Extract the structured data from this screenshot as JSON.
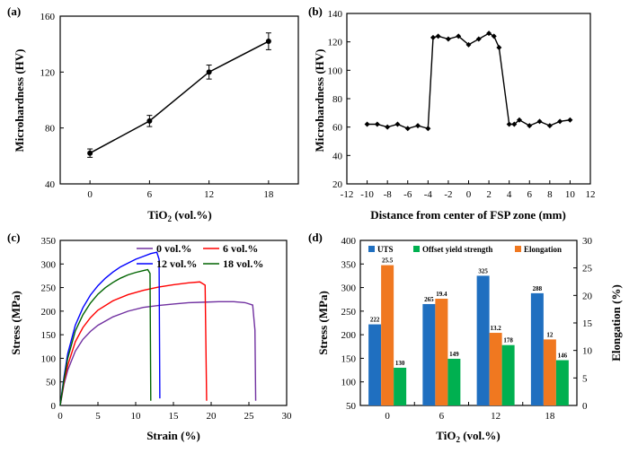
{
  "colors": {
    "black": "#000000",
    "purple": "#7030a0",
    "red": "#ff0000",
    "blue": "#0000ff",
    "green": "#006400",
    "uts": "#1f6fc0",
    "yield": "#00b050",
    "elongation": "#f07820"
  },
  "chart_data": [
    {
      "panel": "(a)",
      "type": "line",
      "xlabel_main": "TiO",
      "xlabel_sub": "2",
      "xlabel_rest": " (vol.%)",
      "ylabel": "Microhardness (HV)",
      "categories": [
        "0",
        "6",
        "12",
        "18"
      ],
      "x": [
        0,
        6,
        12,
        18
      ],
      "values": [
        62,
        85,
        120,
        142
      ],
      "errors": [
        3,
        4,
        5,
        6
      ],
      "ylim": [
        40,
        160
      ],
      "yticks": [
        "40",
        "80",
        "120",
        "160"
      ]
    },
    {
      "panel": "(b)",
      "type": "line",
      "xlabel": "Distance from center of FSP zone (mm)",
      "ylabel": "Microhardness (HV)",
      "x": [
        -10,
        -9,
        -8,
        -7,
        -6,
        -5,
        -4,
        -3.5,
        -3,
        -2,
        -1,
        0,
        1,
        2,
        2.5,
        3,
        4,
        4.5,
        5,
        6,
        7,
        8,
        9,
        10
      ],
      "values": [
        62,
        62,
        60,
        62,
        59,
        61,
        59,
        123,
        124,
        122,
        124,
        118,
        122,
        126,
        124,
        116,
        62,
        62,
        65,
        61,
        64,
        61,
        64,
        65
      ],
      "xlim": [
        -12,
        12
      ],
      "ylim": [
        20,
        140
      ],
      "xticks": [
        "-12",
        "-10",
        "-8",
        "-6",
        "-4",
        "-2",
        "0",
        "2",
        "4",
        "6",
        "8",
        "10",
        "12"
      ],
      "yticks": [
        "20",
        "40",
        "60",
        "80",
        "100",
        "120",
        "140"
      ]
    },
    {
      "panel": "(c)",
      "type": "line",
      "xlabel": "Strain (%)",
      "ylabel": "Stress (MPa)",
      "xlim": [
        0,
        30
      ],
      "ylim": [
        0,
        350
      ],
      "xticks": [
        "0",
        "5",
        "10",
        "15",
        "20",
        "25",
        "30"
      ],
      "yticks": [
        "0",
        "50",
        "100",
        "150",
        "200",
        "250",
        "300",
        "350"
      ],
      "series": [
        {
          "name": "0 vol.%",
          "color_key": "purple",
          "x": [
            0,
            0.5,
            1,
            2,
            3,
            4,
            5,
            7,
            9,
            11,
            13,
            15,
            17,
            19,
            21,
            23,
            24.5,
            25.5,
            25.8,
            25.9
          ],
          "values": [
            0,
            45,
            75,
            115,
            140,
            157,
            170,
            188,
            200,
            208,
            212,
            215,
            218,
            219,
            220,
            220,
            218,
            213,
            160,
            10
          ]
        },
        {
          "name": "6 vol.%",
          "color_key": "red",
          "x": [
            0,
            0.5,
            1,
            2,
            3,
            4,
            5,
            7,
            9,
            11,
            13,
            15,
            17,
            18.5,
            19.2,
            19.4
          ],
          "values": [
            0,
            50,
            85,
            135,
            165,
            186,
            202,
            222,
            235,
            244,
            251,
            256,
            260,
            262,
            255,
            10
          ]
        },
        {
          "name": "12 vol.%",
          "color_key": "blue",
          "x": [
            0,
            0.5,
            1,
            2,
            3,
            4,
            5,
            6,
            7,
            8,
            9,
            10,
            11,
            12,
            12.8,
            13.1,
            13.2
          ],
          "values": [
            0,
            60,
            110,
            170,
            207,
            234,
            254,
            270,
            283,
            294,
            302,
            310,
            316,
            322,
            325,
            310,
            15
          ]
        },
        {
          "name": "18 vol.%",
          "color_key": "green",
          "x": [
            0,
            0.5,
            1,
            2,
            3,
            4,
            5,
            6,
            7,
            8,
            9,
            10,
            11,
            11.6,
            11.9,
            12
          ],
          "values": [
            0,
            55,
            100,
            158,
            192,
            217,
            236,
            250,
            261,
            270,
            277,
            282,
            286,
            288,
            280,
            10
          ]
        }
      ]
    },
    {
      "panel": "(d)",
      "type": "bar",
      "xlabel_main": "TiO",
      "xlabel_sub": "2",
      "xlabel_rest": " (vol.%)",
      "ylabel": "Stress (MPa)",
      "ylabel_right": "Elongation (%)",
      "categories": [
        "0",
        "6",
        "12",
        "18"
      ],
      "ylim": [
        50,
        400
      ],
      "ylim_right": [
        0,
        30
      ],
      "yticks": [
        "50",
        "100",
        "150",
        "200",
        "250",
        "300",
        "350",
        "400"
      ],
      "yticks_right": [
        "0",
        "5",
        "10",
        "15",
        "20",
        "25",
        "30"
      ],
      "series": [
        {
          "name": "UTS",
          "axis": "left",
          "color_key": "uts",
          "values": [
            222,
            265,
            325,
            288
          ],
          "labels": [
            "222",
            "265",
            "325",
            "288"
          ]
        },
        {
          "name": "Elongation",
          "axis": "right",
          "color_key": "elongation",
          "values": [
            25.5,
            19.4,
            13.2,
            12
          ],
          "labels": [
            "25.5",
            "19.4",
            "13.2",
            "12"
          ]
        },
        {
          "name": "Offset yield strength",
          "axis": "left",
          "color_key": "yield",
          "values": [
            130,
            149,
            178,
            146
          ],
          "labels": [
            "130",
            "149",
            "178",
            "146"
          ]
        }
      ],
      "legend_order": [
        "UTS",
        "Offset yield strength",
        "Elongation"
      ]
    }
  ]
}
